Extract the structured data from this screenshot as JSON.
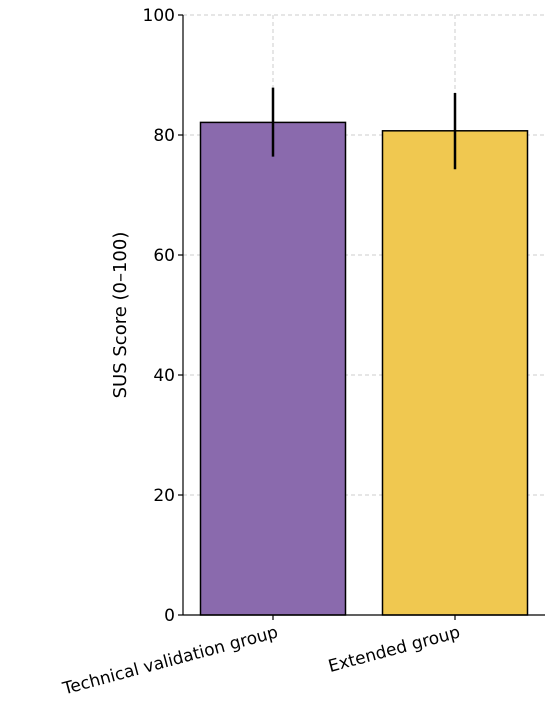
{
  "chart_data": {
    "type": "bar",
    "title": "",
    "xlabel": "",
    "ylabel": "SUS Score (0–100)",
    "categories": [
      "Technical validation group",
      "Extended group"
    ],
    "values": [
      82.1,
      80.7
    ],
    "error_low": [
      76.4,
      74.3
    ],
    "error_high": [
      87.9,
      87.0
    ],
    "colors": [
      "#8a6aad",
      "#f0c850"
    ],
    "ylim": [
      0,
      100
    ],
    "yticks": [
      0,
      20,
      40,
      60,
      80,
      100
    ],
    "grid": true,
    "x_tick_rotation": "rotated about 15 degrees"
  }
}
